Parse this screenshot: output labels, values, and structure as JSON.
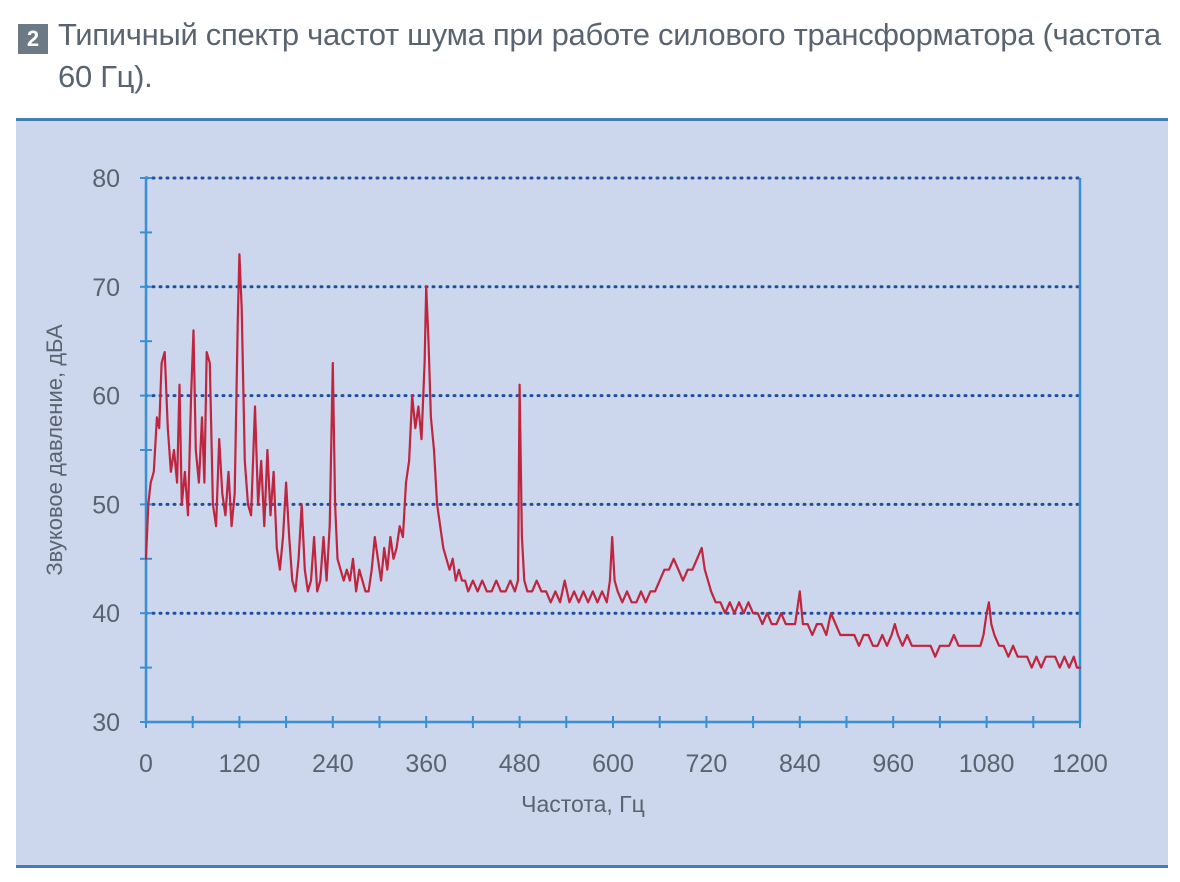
{
  "caption": {
    "number": "2",
    "text": "Типичный спектр частот шума при работе силового трансформатора (частота 60 Гц)."
  },
  "colors": {
    "panel_bg": "#ccd6ec",
    "frame": "#3f7fb1",
    "axis": "#3a8fd0",
    "grid": "#1f4fa0",
    "series": "#c0253f",
    "text": "#5a6470"
  },
  "chart_data": {
    "type": "line",
    "title": "Типичный спектр частот шума при работе силового трансформатора (частота 60 Гц).",
    "xlabel": "Частота, Гц",
    "ylabel": "Звуковое давление, дБА",
    "xlim": [
      0,
      1200
    ],
    "ylim": [
      30,
      80
    ],
    "xticks": [
      "0",
      "120",
      "240",
      "360",
      "480",
      "600",
      "720",
      "840",
      "960",
      "1080",
      "1200"
    ],
    "yticks": [
      "30",
      "40",
      "50",
      "60",
      "70",
      "80"
    ],
    "grid": "horizontal dotted",
    "series": [
      {
        "points": [
          [
            0,
            45
          ],
          [
            3,
            50
          ],
          [
            6,
            52
          ],
          [
            10,
            53
          ],
          [
            14,
            58
          ],
          [
            17,
            57
          ],
          [
            20,
            63
          ],
          [
            24,
            64
          ],
          [
            28,
            57
          ],
          [
            32,
            53
          ],
          [
            36,
            55
          ],
          [
            40,
            52
          ],
          [
            43,
            61
          ],
          [
            46,
            50
          ],
          [
            50,
            53
          ],
          [
            54,
            49
          ],
          [
            58,
            60
          ],
          [
            61,
            66
          ],
          [
            64,
            55
          ],
          [
            68,
            52
          ],
          [
            72,
            58
          ],
          [
            75,
            52
          ],
          [
            78,
            64
          ],
          [
            82,
            63
          ],
          [
            86,
            50
          ],
          [
            90,
            48
          ],
          [
            94,
            56
          ],
          [
            98,
            51
          ],
          [
            102,
            49
          ],
          [
            106,
            53
          ],
          [
            110,
            48
          ],
          [
            114,
            51
          ],
          [
            118,
            67
          ],
          [
            120,
            73
          ],
          [
            123,
            68
          ],
          [
            127,
            54
          ],
          [
            131,
            50
          ],
          [
            135,
            49
          ],
          [
            140,
            59
          ],
          [
            144,
            50
          ],
          [
            148,
            54
          ],
          [
            152,
            48
          ],
          [
            156,
            55
          ],
          [
            160,
            49
          ],
          [
            164,
            53
          ],
          [
            168,
            46
          ],
          [
            172,
            44
          ],
          [
            176,
            47
          ],
          [
            180,
            52
          ],
          [
            184,
            47
          ],
          [
            188,
            43
          ],
          [
            192,
            42
          ],
          [
            196,
            45
          ],
          [
            200,
            50
          ],
          [
            204,
            44
          ],
          [
            208,
            42
          ],
          [
            212,
            43
          ],
          [
            216,
            47
          ],
          [
            220,
            42
          ],
          [
            224,
            43
          ],
          [
            228,
            47
          ],
          [
            232,
            43
          ],
          [
            236,
            48
          ],
          [
            240,
            63
          ],
          [
            243,
            50
          ],
          [
            246,
            45
          ],
          [
            250,
            44
          ],
          [
            254,
            43
          ],
          [
            258,
            44
          ],
          [
            262,
            43
          ],
          [
            266,
            45
          ],
          [
            270,
            42
          ],
          [
            274,
            44
          ],
          [
            278,
            43
          ],
          [
            282,
            42
          ],
          [
            286,
            42
          ],
          [
            290,
            44
          ],
          [
            294,
            47
          ],
          [
            298,
            45
          ],
          [
            302,
            43
          ],
          [
            306,
            46
          ],
          [
            310,
            44
          ],
          [
            314,
            47
          ],
          [
            318,
            45
          ],
          [
            322,
            46
          ],
          [
            326,
            48
          ],
          [
            330,
            47
          ],
          [
            334,
            52
          ],
          [
            338,
            54
          ],
          [
            342,
            60
          ],
          [
            346,
            57
          ],
          [
            350,
            59
          ],
          [
            354,
            56
          ],
          [
            358,
            63
          ],
          [
            360,
            70
          ],
          [
            363,
            65
          ],
          [
            366,
            58
          ],
          [
            370,
            55
          ],
          [
            374,
            50
          ],
          [
            378,
            48
          ],
          [
            382,
            46
          ],
          [
            386,
            45
          ],
          [
            390,
            44
          ],
          [
            394,
            45
          ],
          [
            398,
            43
          ],
          [
            402,
            44
          ],
          [
            406,
            43
          ],
          [
            410,
            43
          ],
          [
            414,
            42
          ],
          [
            420,
            43
          ],
          [
            426,
            42
          ],
          [
            432,
            43
          ],
          [
            438,
            42
          ],
          [
            444,
            42
          ],
          [
            450,
            43
          ],
          [
            456,
            42
          ],
          [
            462,
            42
          ],
          [
            468,
            43
          ],
          [
            474,
            42
          ],
          [
            478,
            43
          ],
          [
            480,
            61
          ],
          [
            483,
            47
          ],
          [
            486,
            43
          ],
          [
            490,
            42
          ],
          [
            496,
            42
          ],
          [
            502,
            43
          ],
          [
            508,
            42
          ],
          [
            514,
            42
          ],
          [
            520,
            41
          ],
          [
            526,
            42
          ],
          [
            532,
            41
          ],
          [
            538,
            43
          ],
          [
            544,
            41
          ],
          [
            550,
            42
          ],
          [
            556,
            41
          ],
          [
            562,
            42
          ],
          [
            568,
            41
          ],
          [
            574,
            42
          ],
          [
            580,
            41
          ],
          [
            586,
            42
          ],
          [
            592,
            41
          ],
          [
            596,
            43
          ],
          [
            599,
            47
          ],
          [
            602,
            43
          ],
          [
            606,
            42
          ],
          [
            612,
            41
          ],
          [
            618,
            42
          ],
          [
            624,
            41
          ],
          [
            630,
            41
          ],
          [
            636,
            42
          ],
          [
            642,
            41
          ],
          [
            648,
            42
          ],
          [
            654,
            42
          ],
          [
            660,
            43
          ],
          [
            666,
            44
          ],
          [
            672,
            44
          ],
          [
            678,
            45
          ],
          [
            684,
            44
          ],
          [
            690,
            43
          ],
          [
            696,
            44
          ],
          [
            702,
            44
          ],
          [
            708,
            45
          ],
          [
            714,
            46
          ],
          [
            718,
            44
          ],
          [
            722,
            43
          ],
          [
            726,
            42
          ],
          [
            732,
            41
          ],
          [
            738,
            41
          ],
          [
            744,
            40
          ],
          [
            750,
            41
          ],
          [
            756,
            40
          ],
          [
            762,
            41
          ],
          [
            768,
            40
          ],
          [
            774,
            41
          ],
          [
            780,
            40
          ],
          [
            786,
            40
          ],
          [
            792,
            39
          ],
          [
            798,
            40
          ],
          [
            804,
            39
          ],
          [
            810,
            39
          ],
          [
            816,
            40
          ],
          [
            822,
            39
          ],
          [
            828,
            39
          ],
          [
            834,
            39
          ],
          [
            840,
            42
          ],
          [
            844,
            39
          ],
          [
            850,
            39
          ],
          [
            856,
            38
          ],
          [
            862,
            39
          ],
          [
            868,
            39
          ],
          [
            874,
            38
          ],
          [
            880,
            40
          ],
          [
            886,
            39
          ],
          [
            892,
            38
          ],
          [
            898,
            38
          ],
          [
            904,
            38
          ],
          [
            910,
            38
          ],
          [
            916,
            37
          ],
          [
            922,
            38
          ],
          [
            928,
            38
          ],
          [
            934,
            37
          ],
          [
            940,
            37
          ],
          [
            946,
            38
          ],
          [
            952,
            37
          ],
          [
            958,
            38
          ],
          [
            962,
            39
          ],
          [
            966,
            38
          ],
          [
            972,
            37
          ],
          [
            978,
            38
          ],
          [
            984,
            37
          ],
          [
            990,
            37
          ],
          [
            996,
            37
          ],
          [
            1002,
            37
          ],
          [
            1008,
            37
          ],
          [
            1014,
            36
          ],
          [
            1020,
            37
          ],
          [
            1026,
            37
          ],
          [
            1032,
            37
          ],
          [
            1038,
            38
          ],
          [
            1044,
            37
          ],
          [
            1050,
            37
          ],
          [
            1056,
            37
          ],
          [
            1062,
            37
          ],
          [
            1068,
            37
          ],
          [
            1072,
            37
          ],
          [
            1076,
            38
          ],
          [
            1080,
            40
          ],
          [
            1083,
            41
          ],
          [
            1086,
            39
          ],
          [
            1090,
            38
          ],
          [
            1096,
            37
          ],
          [
            1102,
            37
          ],
          [
            1108,
            36
          ],
          [
            1114,
            37
          ],
          [
            1120,
            36
          ],
          [
            1126,
            36
          ],
          [
            1132,
            36
          ],
          [
            1138,
            35
          ],
          [
            1144,
            36
          ],
          [
            1150,
            35
          ],
          [
            1156,
            36
          ],
          [
            1162,
            36
          ],
          [
            1168,
            36
          ],
          [
            1174,
            35
          ],
          [
            1180,
            36
          ],
          [
            1186,
            35
          ],
          [
            1192,
            36
          ],
          [
            1196,
            35
          ],
          [
            1200,
            35
          ]
        ]
      }
    ]
  }
}
